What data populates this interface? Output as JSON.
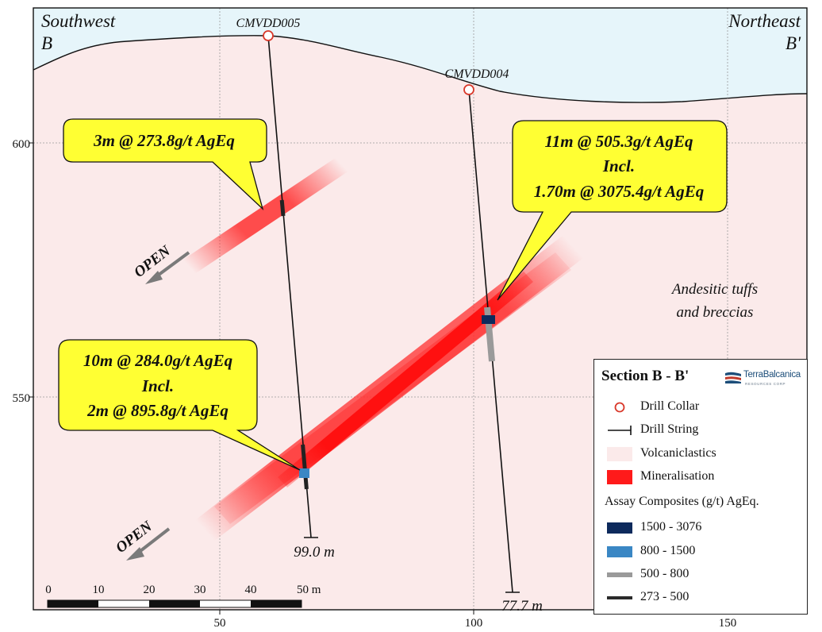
{
  "section": {
    "left_direction": "Southwest",
    "left_label": "B",
    "right_direction": "Northeast",
    "right_label": "B'"
  },
  "axes": {
    "y_ticks": [
      "600",
      "550"
    ],
    "x_ticks": [
      "50",
      "100",
      "150"
    ]
  },
  "drill_holes": [
    {
      "id": "CMVDD005",
      "end_depth": "99.0 m"
    },
    {
      "id": "CMVDD004",
      "end_depth": "77.7 m"
    }
  ],
  "callouts": [
    {
      "lines": [
        "3m @ 273.8g/t AgEq"
      ]
    },
    {
      "lines": [
        "11m @ 505.3g/t AgEq",
        "Incl.",
        "1.70m @ 3075.4g/t AgEq"
      ]
    },
    {
      "lines": [
        "10m @ 284.0g/t AgEq",
        "Incl.",
        "2m @ 895.8g/t AgEq"
      ]
    }
  ],
  "open_labels": [
    "OPEN",
    "OPEN"
  ],
  "lithology_label": [
    "Andesitic tuffs",
    "and breccias"
  ],
  "scale_bar": {
    "labels": [
      "0",
      "10",
      "20",
      "30",
      "40",
      "50 m"
    ]
  },
  "legend": {
    "title": "Section B - B'",
    "logo_text": "TerraBalcanica",
    "logo_subtext": "RESOURCES CORP",
    "items": [
      {
        "symbol": "drill-collar",
        "label": "Drill Collar"
      },
      {
        "symbol": "drill-string",
        "label": "Drill String"
      },
      {
        "symbol": "volcaniclastics",
        "label": "Volcaniclastics"
      },
      {
        "symbol": "mineralisation",
        "label": "Mineralisation"
      }
    ],
    "assay_header": "Assay Composites (g/t) AgEq.",
    "assay_items": [
      {
        "label": "1500 - 3076",
        "color": "#0d2a5c"
      },
      {
        "label": "800 - 1500",
        "color": "#3a87c4"
      },
      {
        "label": "500 - 800",
        "color": "#9a9a9a"
      },
      {
        "label": "273 - 500",
        "color": "#2a2a2a"
      }
    ]
  },
  "colors": {
    "sky": "#e6f5fa",
    "volcaniclastics": "#fbeaea",
    "mineralisation": "#ff1a1a",
    "callout_fill": "#ffff33",
    "collar": "#d9382a"
  }
}
